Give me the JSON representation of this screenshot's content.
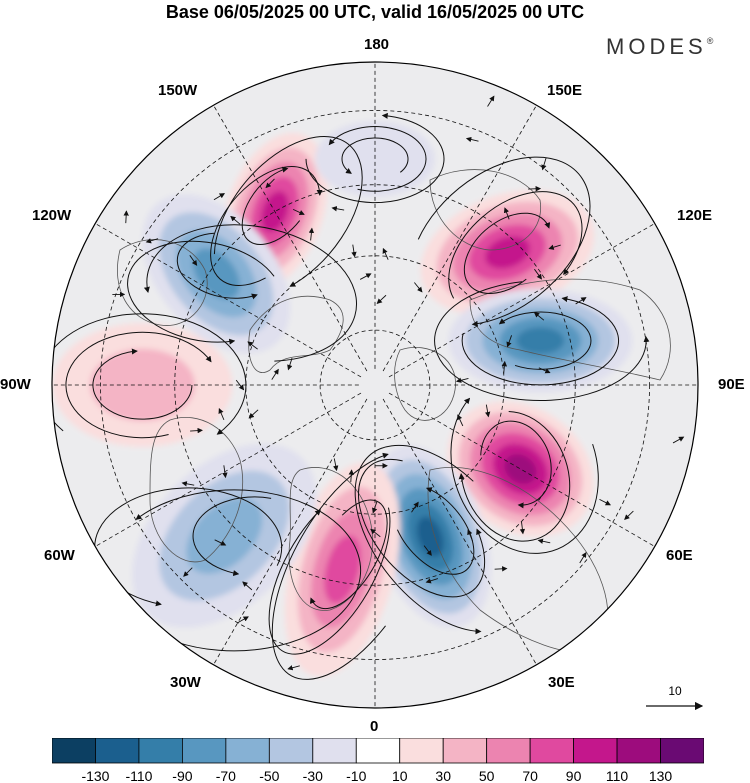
{
  "header": {
    "title": "Base 06/05/2025 00 UTC, valid 16/05/2025 00 UTC",
    "brand": "MODES",
    "brand_mark": "®"
  },
  "map": {
    "projection": "north-polar-stereographic",
    "longitude_labels": {
      "north": "180",
      "south": "0",
      "west": "90W",
      "east": "90E",
      "n150w": "150W",
      "n150e": "150E",
      "n120w": "120W",
      "n120e": "120E",
      "s60w": "60W",
      "s60e": "60E",
      "s30w": "30W",
      "s30e": "30E"
    },
    "field": "geopotential height anomaly",
    "anomaly_centers": [
      {
        "sign": "positive",
        "bearing": "150W",
        "peak": 110
      },
      {
        "sign": "negative",
        "bearing": "180",
        "peak": -30
      },
      {
        "sign": "positive",
        "bearing": "135E",
        "peak": 110
      },
      {
        "sign": "negative",
        "bearing": "105E",
        "peak": -110
      },
      {
        "sign": "positive",
        "bearing": "60E",
        "peak": 130
      },
      {
        "sign": "negative",
        "bearing": "20E",
        "peak": -130
      },
      {
        "sign": "positive",
        "bearing": "10W",
        "peak": 90
      },
      {
        "sign": "negative",
        "bearing": "45W",
        "peak": -70
      },
      {
        "sign": "negative",
        "bearing": "125W",
        "peak": -90
      },
      {
        "sign": "positive",
        "bearing": "90W",
        "peak": 50
      }
    ]
  },
  "vector_reference": {
    "label": "10"
  },
  "colorbar": {
    "ticks": [
      "-130",
      "-110",
      "-90",
      "-70",
      "-50",
      "-30",
      "-10",
      "10",
      "30",
      "50",
      "70",
      "90",
      "110",
      "130"
    ],
    "colors": [
      "#0c3f62",
      "#1b5f8e",
      "#347ea9",
      "#5897c0",
      "#86b1d4",
      "#b3c6e1",
      "#e0e0ee",
      "#ffffff",
      "#fadede",
      "#f4b4c5",
      "#ec84b0",
      "#e0499f",
      "#c4178c",
      "#9d0c7d",
      "#6a0a73"
    ]
  }
}
